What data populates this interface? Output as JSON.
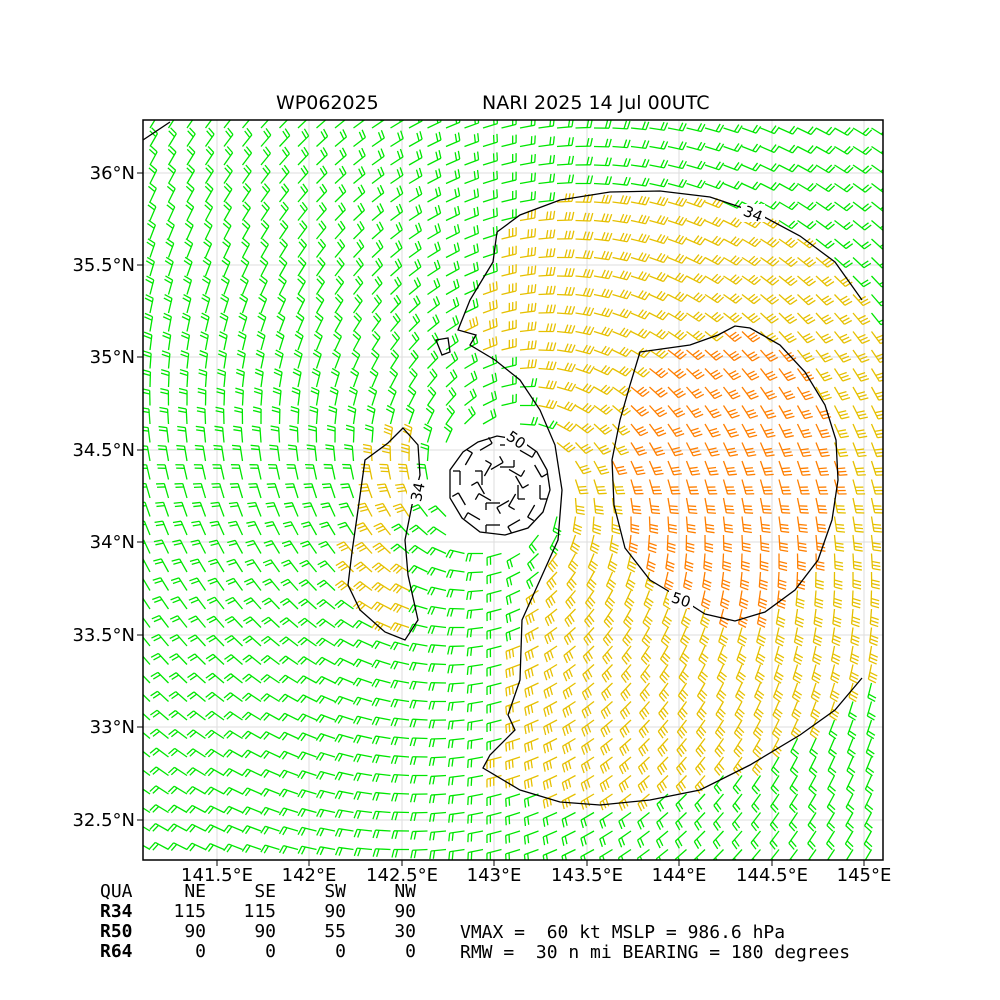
{
  "header": {
    "storm_id": "WP062025",
    "storm_info": "NARI 2025 14 Jul 00UTC"
  },
  "map": {
    "lat_labels": [
      "36°N",
      "35.5°N",
      "35°N",
      "34.5°N",
      "34°N",
      "33.5°N",
      "33°N",
      "32.5°N"
    ],
    "lon_labels": [
      "141.5°E",
      "142°E",
      "142.5°E",
      "143°E",
      "143.5°E",
      "144°E",
      "144.5°E",
      "145°E"
    ],
    "contour_labels": [
      "34",
      "34",
      "50",
      "50"
    ],
    "colors": {
      "below_34kt": "#00e600",
      "34_to_50kt": "#e6c000",
      "50_to_64kt": "#ff7f00",
      "contour": "#000000"
    }
  },
  "quadrant_table": {
    "header": [
      "QUA",
      "NE",
      "SE",
      "SW",
      "NW"
    ],
    "rows": [
      {
        "label": "R34",
        "values": [
          "115",
          "115",
          "90",
          "90"
        ]
      },
      {
        "label": "R50",
        "values": [
          "90",
          "90",
          "55",
          "30"
        ]
      },
      {
        "label": "R64",
        "values": [
          "0",
          "0",
          "0",
          "0"
        ]
      }
    ]
  },
  "summary": {
    "line1": "VMAX =  60 kt MSLP = 986.6 hPa",
    "line2": "RMW =  30 n mi BEARING = 180 degrees"
  }
}
